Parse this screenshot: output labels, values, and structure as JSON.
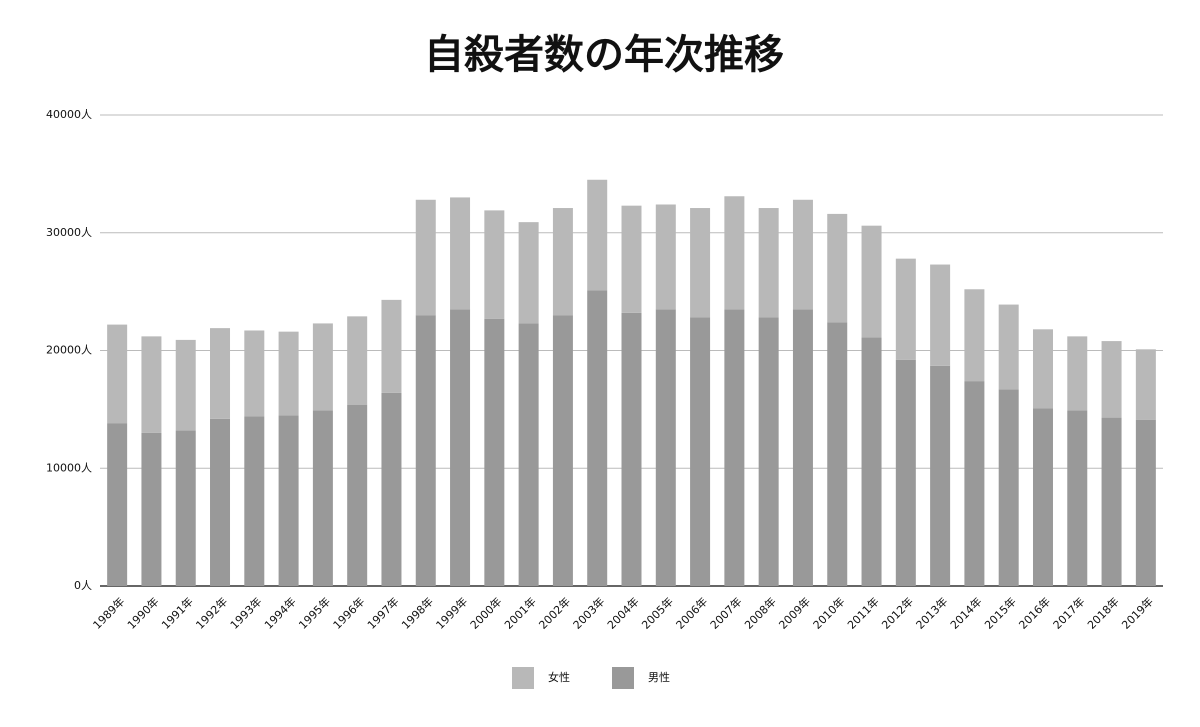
{
  "chart_data": {
    "type": "stacked-bar",
    "title": "自殺者数の年次推移",
    "categories": [
      "1989年",
      "1990年",
      "1991年",
      "1992年",
      "1993年",
      "1994年",
      "1995年",
      "1996年",
      "1997年",
      "1998年",
      "1999年",
      "2000年",
      "2001年",
      "2002年",
      "2003年",
      "2004年",
      "2005年",
      "2006年",
      "2007年",
      "2008年",
      "2009年",
      "2010年",
      "2011年",
      "2012年",
      "2013年",
      "2014年",
      "2015年",
      "2016年",
      "2017年",
      "2018年",
      "2019年"
    ],
    "series": [
      {
        "name": "女性",
        "color": "#b8b8b8",
        "values": [
          8400,
          8200,
          7700,
          7700,
          7300,
          7100,
          7400,
          7500,
          7900,
          9800,
          9500,
          9200,
          8600,
          9100,
          9400,
          9100,
          8900,
          9300,
          9600,
          9300,
          9300,
          9200,
          9500,
          8600,
          8600,
          7800,
          7200,
          6700,
          6300,
          6500,
          6000
        ]
      },
      {
        "name": "男性",
        "color": "#999999",
        "values": [
          13800,
          13000,
          13200,
          14200,
          14400,
          14500,
          14900,
          15400,
          16400,
          23000,
          23500,
          22700,
          22300,
          23000,
          25100,
          23200,
          23500,
          22800,
          23500,
          22800,
          23500,
          22400,
          21100,
          19200,
          18700,
          17400,
          16700,
          15100,
          14900,
          14300,
          14100
        ]
      }
    ],
    "ylim": [
      0,
      40000
    ],
    "yticks": [
      {
        "value": 0,
        "label": "0人"
      },
      {
        "value": 10000,
        "label": "10000人"
      },
      {
        "value": 20000,
        "label": "20000人"
      },
      {
        "value": 30000,
        "label": "30000人"
      },
      {
        "value": 40000,
        "label": "40000人"
      }
    ],
    "grid": true
  }
}
